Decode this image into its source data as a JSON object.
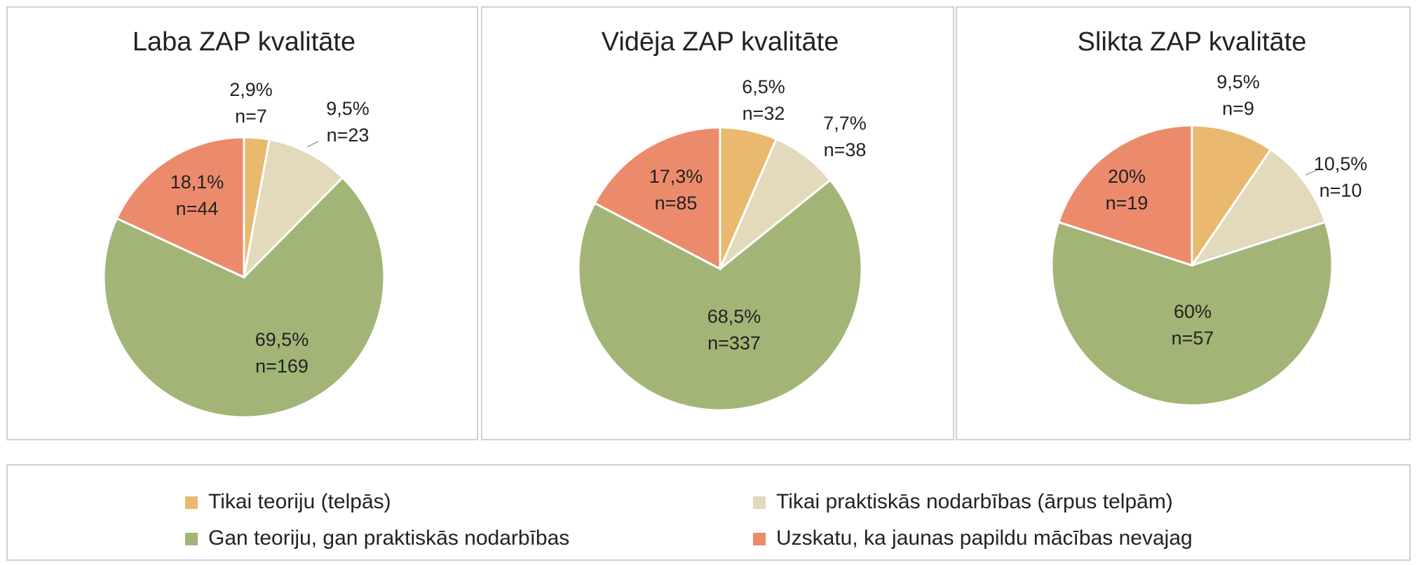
{
  "chart_data": [
    {
      "type": "pie",
      "title": "Laba ZAP kvalitāte",
      "values": [
        2.9,
        9.5,
        69.5,
        18.1
      ],
      "value_labels": [
        "2,9%",
        "9,5%",
        "69,5%",
        "18,1%"
      ],
      "counts": [
        7,
        23,
        169,
        44
      ],
      "count_labels": [
        "n=7",
        "n=23",
        "n=169",
        "n=44"
      ]
    },
    {
      "type": "pie",
      "title": "Vidēja ZAP kvalitāte",
      "values": [
        6.5,
        7.7,
        68.5,
        17.3
      ],
      "value_labels": [
        "6,5%",
        "7,7%",
        "68,5%",
        "17,3%"
      ],
      "counts": [
        32,
        38,
        337,
        85
      ],
      "count_labels": [
        "n=32",
        "n=38",
        "n=337",
        "n=85"
      ]
    },
    {
      "type": "pie",
      "title": "Slikta ZAP kvalitāte",
      "values": [
        9.5,
        10.5,
        60,
        20
      ],
      "value_labels": [
        "9,5%",
        "10,5%",
        "60%",
        "20%"
      ],
      "counts": [
        9,
        10,
        57,
        19
      ],
      "count_labels": [
        "n=9",
        "n=10",
        "n=57",
        "n=19"
      ]
    }
  ],
  "legend": {
    "items": [
      {
        "name": "Tikai teoriju (telpās)",
        "color": "#E8B96E"
      },
      {
        "name": "Tikai praktiskās nodarbības (ārpus telpām)",
        "color": "#E3D9BC"
      },
      {
        "name": "Gan teoriju, gan praktiskās nodarbības",
        "color": "#A2B576"
      },
      {
        "name": "Uzskatu, ka jaunas papildu mācības nevajag",
        "color": "#EC8B6C"
      }
    ]
  }
}
